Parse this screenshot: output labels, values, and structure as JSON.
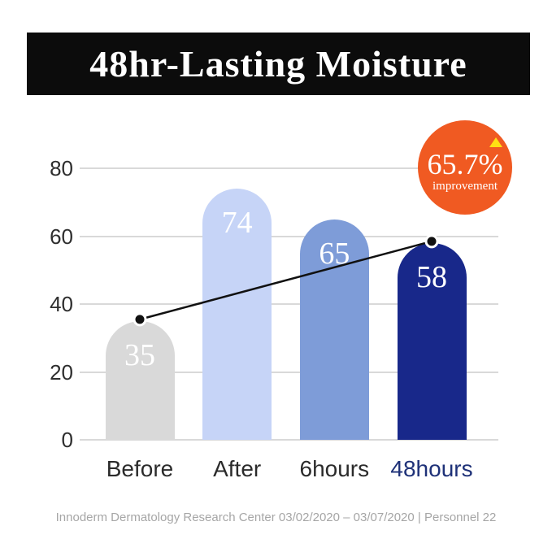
{
  "header": {
    "title": "48hr-Lasting Moisture"
  },
  "badge": {
    "value": "65.7%",
    "label": "improvement",
    "color": "#f05a22",
    "triangle_color": "#ffe013"
  },
  "chart_data": {
    "type": "bar",
    "title": "48hr-Lasting Moisture",
    "categories": [
      "Before",
      "After",
      "6hours",
      "48hours"
    ],
    "values": [
      35,
      74,
      65,
      58
    ],
    "bar_colors": [
      "#d9d9d9",
      "#c6d4f7",
      "#7e9cd8",
      "#18288a"
    ],
    "category_label_colors": [
      "#2b2b2b",
      "#2b2b2b",
      "#2b2b2b",
      "#1e3178"
    ],
    "value_label_color": "#ffffff",
    "yticks": [
      0,
      20,
      40,
      60,
      80
    ],
    "ylim": [
      0,
      80
    ],
    "grid": true,
    "gridline_color": "#d9d9d9",
    "legend": "none",
    "annotation": {
      "value": "65.7%",
      "label": "improvement"
    },
    "trend_line": {
      "from_category": "Before",
      "to_category": "48hours",
      "color": "#111111"
    }
  },
  "footer": {
    "text": "Innoderm Dermatology Research Center 03/02/2020 – 03/07/2020 | Personnel 22"
  }
}
